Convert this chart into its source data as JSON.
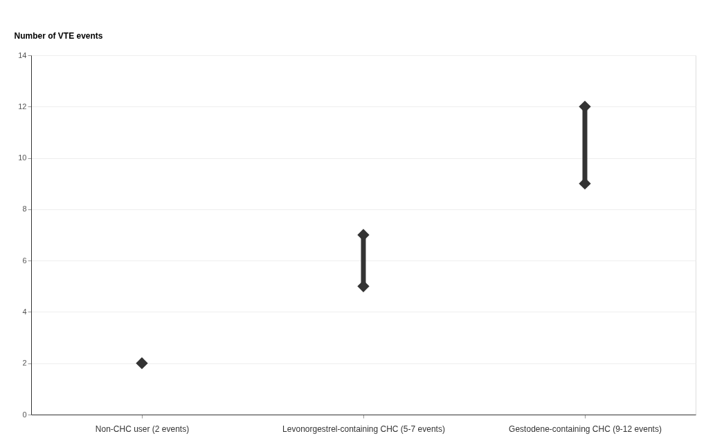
{
  "chart_data": {
    "type": "line",
    "ylabel": "Number of VTE events",
    "categories": [
      "Non-CHC user (2 events)",
      "Levonorgestrel-containing CHC (5-7 events)",
      "Gestodene-containing CHC (9-12 events)"
    ],
    "series": [
      {
        "color": "#333333",
        "x": [
          "Non-CHC user (2 events)"
        ],
        "values": [
          2
        ]
      },
      {
        "color": "#333333",
        "x": [
          "Levonorgestrel-containing CHC (5-7 events)",
          "Levonorgestrel-containing CHC (5-7 events)"
        ],
        "values": [
          5,
          7
        ]
      },
      {
        "color": "#333333",
        "x": [
          "Gestodene-containing CHC (9-12 events)",
          "Gestodene-containing CHC (9-12 events)"
        ],
        "values": [
          9,
          12
        ]
      }
    ],
    "ylim": [
      0,
      14
    ],
    "yticks": [
      0,
      2,
      4,
      6,
      8,
      10,
      12,
      14
    ],
    "grid": "y",
    "legend": false,
    "marker": "diamond",
    "line_style": "solid"
  }
}
